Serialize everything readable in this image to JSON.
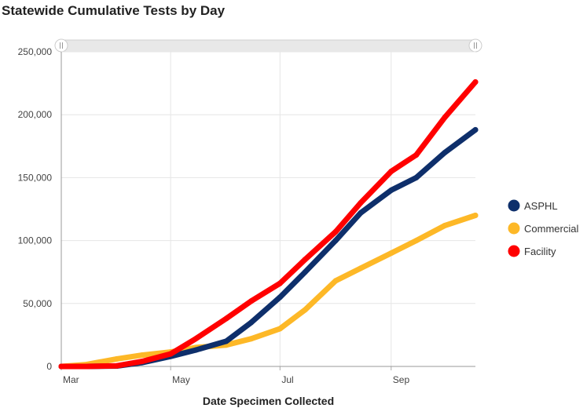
{
  "title": "Statewide Cumulative Tests by Day",
  "chart_data": {
    "type": "line",
    "title": "Statewide Cumulative Tests by Day",
    "xlabel": "Date Specimen Collected",
    "ylabel": "",
    "ylim": [
      0,
      250000
    ],
    "yticks": [
      "0",
      "50,000",
      "100,000",
      "150,000",
      "200,000",
      "250,000"
    ],
    "xticks": [
      "Mar",
      "May",
      "Jul",
      "Sep"
    ],
    "x": [
      "Mar 1",
      "Mar 15",
      "Apr 1",
      "Apr 15",
      "May 1",
      "May 15",
      "Jun 1",
      "Jun 15",
      "Jul 1",
      "Jul 15",
      "Aug 1",
      "Aug 15",
      "Sep 1",
      "Sep 15",
      "Oct 1",
      "Oct 18"
    ],
    "x_days": [
      0,
      14,
      31,
      45,
      61,
      75,
      92,
      106,
      122,
      136,
      153,
      167,
      184,
      198,
      214,
      231
    ],
    "legend_position": "right",
    "series": [
      {
        "name": "ASPHL",
        "color": "#0e2f6b",
        "values": [
          0,
          0,
          300,
          3000,
          8000,
          13000,
          20000,
          35000,
          55000,
          75000,
          100000,
          122000,
          140000,
          150000,
          170000,
          188000
        ]
      },
      {
        "name": "Commercial",
        "color": "#fdb827",
        "values": [
          0,
          1500,
          6000,
          9000,
          11500,
          15000,
          17000,
          22000,
          30000,
          45000,
          68000,
          78000,
          90000,
          100000,
          112000,
          120000
        ]
      },
      {
        "name": "Facility",
        "color": "#ff0000",
        "values": [
          0,
          0,
          500,
          4000,
          10000,
          22000,
          38000,
          52000,
          66000,
          85000,
          107000,
          130000,
          155000,
          168000,
          198000,
          226000
        ]
      }
    ]
  }
}
